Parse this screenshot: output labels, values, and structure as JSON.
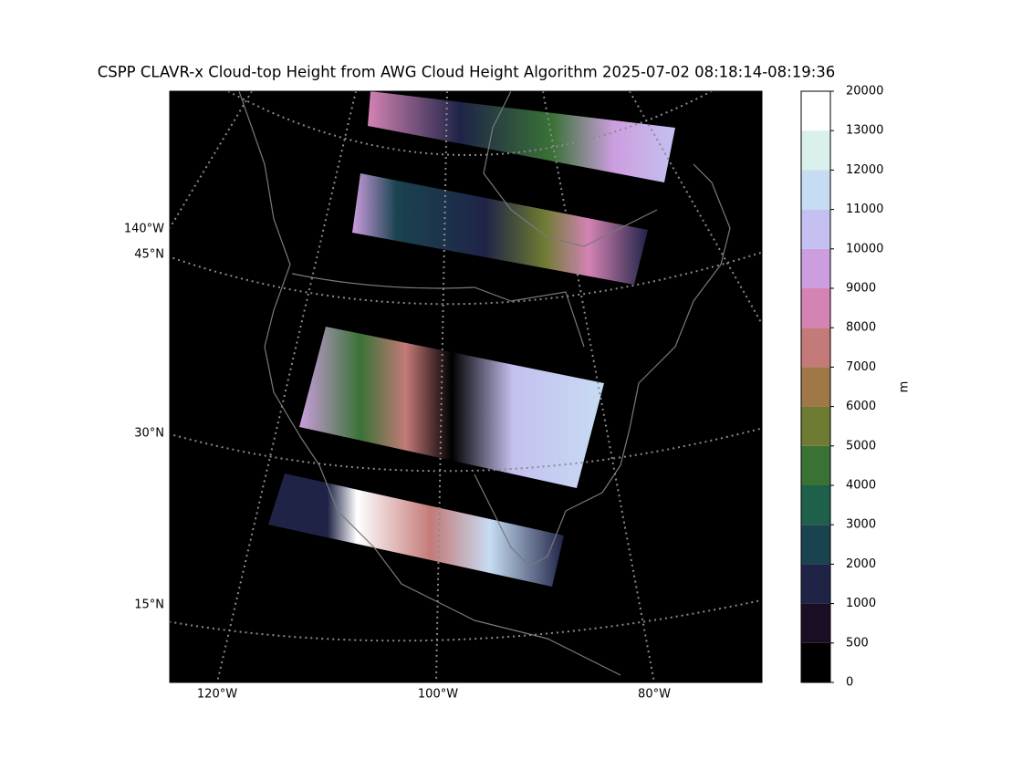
{
  "title": "CSPP CLAVR-x Cloud-top Height from AWG Cloud Height Algorithm 2025-07-02 08:18:14-08:19:36",
  "map": {
    "lon_labels": [
      "120°W",
      "100°W",
      "80°W"
    ],
    "lat_labels": [
      "15°N",
      "30°N",
      "45°N"
    ],
    "edge_lon_label": "140°W"
  },
  "colorbar": {
    "label": "m",
    "bounds": [
      0,
      500,
      1000,
      2000,
      3000,
      4000,
      5000,
      6000,
      7000,
      8000,
      9000,
      10000,
      11000,
      12000,
      13000,
      20000
    ],
    "colors": [
      "#000000",
      "#1a0e24",
      "#1f2447",
      "#1a4350",
      "#1e6049",
      "#3a7236",
      "#6e7b33",
      "#a07848",
      "#c47a78",
      "#d483b4",
      "#cc9edf",
      "#c4c0f0",
      "#c6dcf2",
      "#d9f0ec",
      "#ffffff"
    ]
  }
}
